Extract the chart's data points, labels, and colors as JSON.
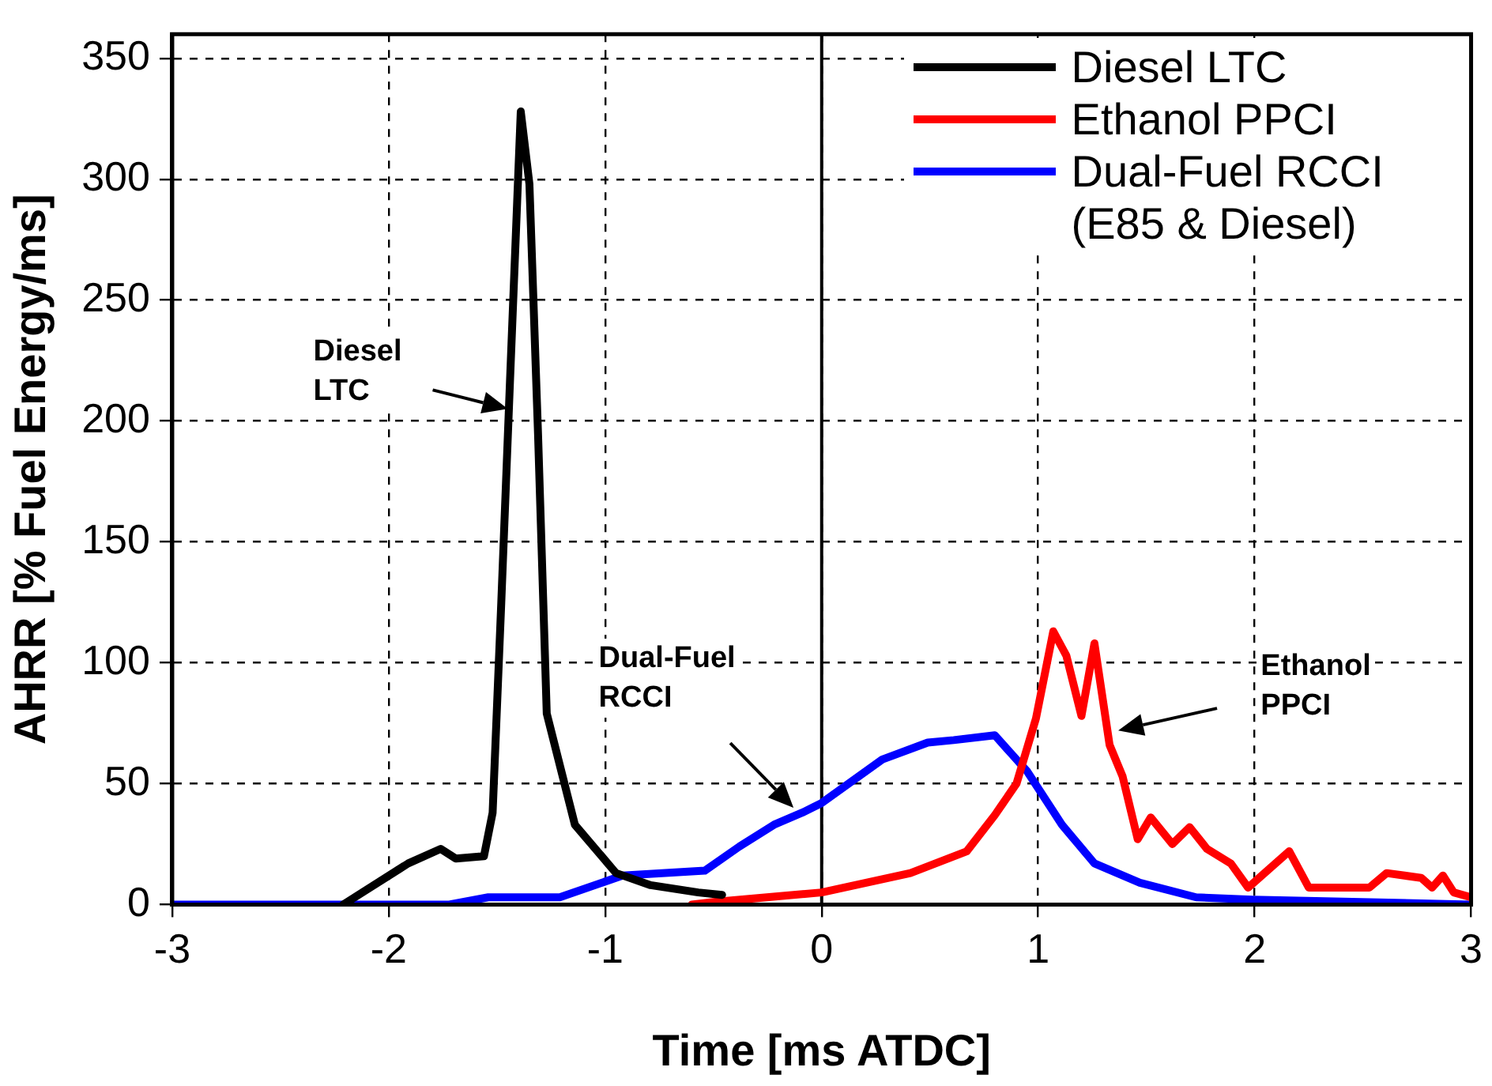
{
  "chart_data": {
    "type": "line",
    "xlabel": "Time [ms ATDC]",
    "ylabel": "AHRR [% Fuel Energy/ms]",
    "xlim": [
      -3,
      3
    ],
    "xticks": [
      -3,
      -2,
      -1,
      0,
      1,
      2,
      3
    ],
    "ylim": [
      0,
      360
    ],
    "yticks": [
      0,
      50,
      100,
      150,
      200,
      250,
      300,
      350
    ],
    "grid": true,
    "legend": "top right",
    "marker": "none",
    "line_style": "solid",
    "ref_lines": [
      {
        "axis": "x",
        "value": 0,
        "color": "#000000"
      }
    ],
    "annotations": [
      "Diesel\nLTC",
      "Dual-Fuel\nRCCI",
      "Ethanol\nPPCI"
    ],
    "series": [
      {
        "name": "Diesel LTC",
        "color": "#000000",
        "x": [
          -2.21,
          -1.91,
          -1.76,
          -1.69,
          -1.56,
          -1.52,
          -1.48,
          -1.44,
          -1.39,
          -1.35,
          -1.31,
          -1.27,
          -1.14,
          -0.95,
          -0.79,
          -0.57,
          -0.46
        ],
        "values": [
          0,
          17,
          23,
          19,
          20,
          38,
          125,
          216,
          328,
          298,
          194,
          79,
          33,
          13,
          8,
          5,
          4
        ]
      },
      {
        "name": "Ethanol PPCI",
        "color": "#ff0000",
        "x": [
          -0.6,
          -0.5,
          0,
          0.41,
          0.67,
          0.8,
          0.9,
          0.99,
          1.07,
          1.13,
          1.2,
          1.26,
          1.33,
          1.39,
          1.46,
          1.52,
          1.62,
          1.7,
          1.78,
          1.89,
          1.97,
          2.16,
          2.25,
          2.35,
          2.53,
          2.61,
          2.77,
          2.82,
          2.87,
          2.92,
          3.0
        ],
        "values": [
          0,
          1,
          5,
          13,
          22,
          37,
          50,
          77,
          113,
          103,
          78,
          108,
          66,
          53,
          27,
          36,
          25,
          32,
          23,
          17,
          7,
          22,
          7,
          7,
          7,
          13,
          11,
          7,
          12,
          5,
          3
        ]
      },
      {
        "name": "Dual-Fuel RCCI (E85 & Diesel)",
        "color": "#0000ff",
        "x": [
          -3,
          -1.72,
          -1.54,
          -1.21,
          -0.92,
          -0.54,
          -0.38,
          -0.22,
          -0.09,
          0,
          0.28,
          0.49,
          0.61,
          0.8,
          0.88,
          0.95,
          1.11,
          1.26,
          1.47,
          1.73,
          1.99,
          3.0
        ],
        "values": [
          0,
          0,
          3,
          3,
          12,
          14,
          24,
          33,
          38,
          42,
          60,
          67,
          68,
          70,
          62,
          55,
          33,
          17,
          9,
          3,
          2,
          0
        ]
      }
    ]
  }
}
